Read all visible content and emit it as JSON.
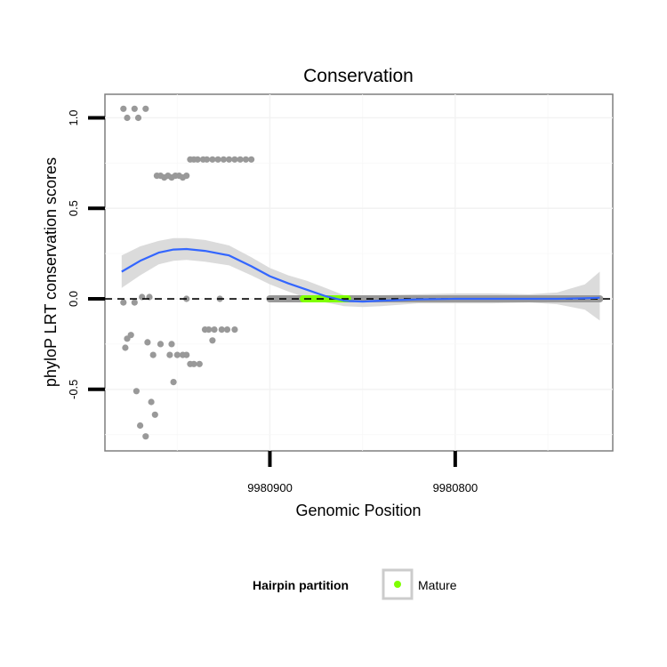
{
  "chart_data": {
    "type": "scatter",
    "title": "Conservation",
    "xlabel": "Genomic Position",
    "ylabel": "phyloP LRT conservation scores",
    "x_reversed": true,
    "xlim": [
      9980989,
      9980715
    ],
    "ylim": [
      -0.84,
      1.13
    ],
    "x_ticks": [
      {
        "value": 9980900,
        "label": "9980900"
      },
      {
        "value": 9980800,
        "label": "9980800"
      }
    ],
    "y_ticks": [
      {
        "value": -0.5,
        "label": "-0.5"
      },
      {
        "value": 0.0,
        "label": "0.0"
      },
      {
        "value": 0.5,
        "label": "0.5"
      },
      {
        "value": 1.0,
        "label": "1.0"
      }
    ],
    "reference_line": {
      "y": 0,
      "style": "dashed"
    },
    "series": [
      {
        "name": "scores",
        "color": "#999999",
        "points": [
          [
            9980979,
            1.05
          ],
          [
            9980977,
            1.0
          ],
          [
            9980973,
            1.05
          ],
          [
            9980971,
            1.0
          ],
          [
            9980967,
            1.05
          ],
          [
            9980979,
            -0.02
          ],
          [
            9980973,
            -0.02
          ],
          [
            9980969,
            0.01
          ],
          [
            9980965,
            0.01
          ],
          [
            9980978,
            -0.27
          ],
          [
            9980977,
            -0.22
          ],
          [
            9980975,
            -0.2
          ],
          [
            9980972,
            -0.51
          ],
          [
            9980970,
            -0.7
          ],
          [
            9980967,
            -0.76
          ],
          [
            9980966,
            -0.24
          ],
          [
            9980964,
            -0.57
          ],
          [
            9980963,
            -0.31
          ],
          [
            9980962,
            -0.64
          ],
          [
            9980959,
            -0.25
          ],
          [
            9980954,
            -0.31
          ],
          [
            9980953,
            -0.25
          ],
          [
            9980952,
            -0.46
          ],
          [
            9980950,
            -0.31
          ],
          [
            9980947,
            -0.31
          ],
          [
            9980945,
            0.0
          ],
          [
            9980945,
            -0.31
          ],
          [
            9980943,
            -0.36
          ],
          [
            9980941,
            -0.36
          ],
          [
            9980938,
            -0.36
          ],
          [
            9980935,
            -0.17
          ],
          [
            9980933,
            -0.17
          ],
          [
            9980931,
            -0.23
          ],
          [
            9980930,
            -0.17
          ],
          [
            9980927,
            0.0
          ],
          [
            9980926,
            -0.17
          ],
          [
            9980923,
            -0.17
          ],
          [
            9980919,
            -0.17
          ],
          [
            9980961,
            0.68
          ],
          [
            9980959,
            0.68
          ],
          [
            9980957,
            0.67
          ],
          [
            9980955,
            0.68
          ],
          [
            9980953,
            0.67
          ],
          [
            9980951,
            0.68
          ],
          [
            9980949,
            0.68
          ],
          [
            9980947,
            0.67
          ],
          [
            9980945,
            0.68
          ],
          [
            9980943,
            0.77
          ],
          [
            9980941,
            0.77
          ],
          [
            9980939,
            0.77
          ],
          [
            9980936,
            0.77
          ],
          [
            9980934,
            0.77
          ],
          [
            9980931,
            0.77
          ],
          [
            9980928,
            0.77
          ],
          [
            9980925,
            0.77
          ],
          [
            9980922,
            0.77
          ],
          [
            9980919,
            0.77
          ],
          [
            9980916,
            0.77
          ],
          [
            9980913,
            0.77
          ],
          [
            9980910,
            0.77
          ]
        ]
      },
      {
        "name": "scores-zero",
        "color": "#999999",
        "x_range": [
          9980900,
          9980722
        ],
        "y": 0.0
      },
      {
        "name": "Mature",
        "color": "#7fff00",
        "x_range": [
          9980882,
          9980858
        ],
        "y": 0.0
      }
    ],
    "smooth": {
      "color": "#3366ff",
      "band_color": "#d9d9d9",
      "points": [
        [
          9980980,
          0.15,
          0.06,
          0.24
        ],
        [
          9980970,
          0.21,
          0.13,
          0.29
        ],
        [
          9980960,
          0.255,
          0.19,
          0.32
        ],
        [
          9980952,
          0.272,
          0.21,
          0.335
        ],
        [
          9980945,
          0.275,
          0.215,
          0.335
        ],
        [
          9980935,
          0.265,
          0.205,
          0.325
        ],
        [
          9980922,
          0.24,
          0.185,
          0.295
        ],
        [
          9980910,
          0.18,
          0.13,
          0.23
        ],
        [
          9980900,
          0.125,
          0.08,
          0.17
        ],
        [
          9980890,
          0.085,
          0.04,
          0.13
        ],
        [
          9980880,
          0.05,
          0.005,
          0.1
        ],
        [
          9980870,
          0.015,
          -0.02,
          0.06
        ],
        [
          9980860,
          -0.01,
          -0.04,
          0.02
        ],
        [
          9980850,
          -0.015,
          -0.045,
          0.015
        ],
        [
          9980840,
          -0.01,
          -0.04,
          0.02
        ],
        [
          9980820,
          -0.003,
          -0.025,
          0.025
        ],
        [
          9980800,
          0.0,
          -0.025,
          0.03
        ],
        [
          9980780,
          0.0,
          -0.025,
          0.03
        ],
        [
          9980760,
          0.0,
          -0.02,
          0.025
        ],
        [
          9980745,
          0.0,
          -0.03,
          0.035
        ],
        [
          9980730,
          0.003,
          -0.06,
          0.08
        ],
        [
          9980722,
          0.006,
          -0.12,
          0.15
        ]
      ]
    },
    "legend": {
      "position": "bottom",
      "title": "Hairpin partition",
      "entries": [
        {
          "label": "Mature",
          "color": "#7fff00"
        }
      ]
    }
  }
}
